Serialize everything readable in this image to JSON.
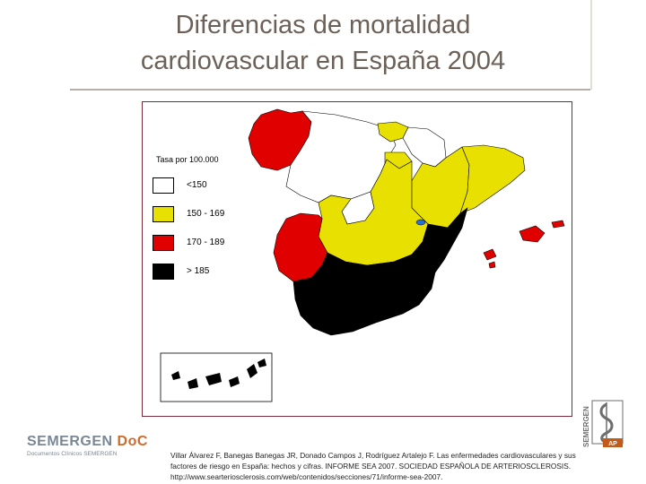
{
  "slide": {
    "title_line1": "Diferencias de mortalidad",
    "title_line2": "cardiovascular en España 2004"
  },
  "legend": {
    "title": "Tasa por 100.000",
    "items": [
      {
        "label": "<150",
        "color": "#ffffff"
      },
      {
        "label": "150 - 169",
        "color": "#e8e000"
      },
      {
        "label": "170 - 189",
        "color": "#e00000"
      },
      {
        "label": "> 185",
        "color": "#000000"
      }
    ]
  },
  "colors": {
    "title": "#6b6159",
    "map_frame": "#7a2a3a",
    "white_band": "#ffffff",
    "yellow_band": "#e8e000",
    "red_band": "#e00000",
    "black_band": "#000000",
    "madrid_marker": "#2a6fd6"
  },
  "footer": {
    "logo_name": "SEMERGEN",
    "logo_accent": "DoC",
    "logo_sub": "Documentos Clínicos SEMERGEN",
    "right_logo_text": "SEMERGEN",
    "right_logo_ap": "AP",
    "citation_line1": "Villar Álvarez F, Banegas Banegas JR, Donado Campos J, Rodríguez Artalejo F. Las enfermedades cardiovasculares y sus",
    "citation_line2": "factores de riesgo en España: hechos y cifras. INFORME SEA 2007. SOCIEDAD ESPAÑOLA DE ARTERIOSCLEROSIS.",
    "citation_line3": "http://www.searteriosclerosis.com/web/contenidos/secciones/71/informe-sea-2007."
  }
}
